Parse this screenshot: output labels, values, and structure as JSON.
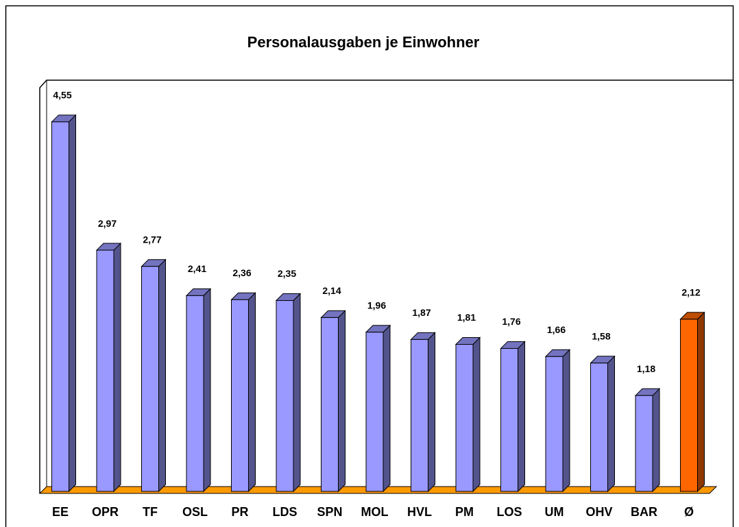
{
  "chart_data": {
    "type": "bar3d",
    "title": "Personalausgaben je Einwohner",
    "categories": [
      "EE",
      "OPR",
      "TF",
      "OSL",
      "PR",
      "LDS",
      "SPN",
      "MOL",
      "HVL",
      "PM",
      "LOS",
      "UM",
      "OHV",
      "BAR",
      "Ø"
    ],
    "values": [
      4.55,
      2.97,
      2.77,
      2.41,
      2.36,
      2.35,
      2.14,
      1.96,
      1.87,
      1.81,
      1.76,
      1.66,
      1.58,
      1.18,
      2.12
    ],
    "value_labels": [
      "4,55",
      "2,97",
      "2,77",
      "2,41",
      "2,36",
      "2,35",
      "2,14",
      "1,96",
      "1,87",
      "1,81",
      "1,76",
      "1,66",
      "1,58",
      "1,18",
      "2,12"
    ],
    "colors": [
      "#9999ff",
      "#9999ff",
      "#9999ff",
      "#9999ff",
      "#9999ff",
      "#9999ff",
      "#9999ff",
      "#9999ff",
      "#9999ff",
      "#9999ff",
      "#9999ff",
      "#9999ff",
      "#9999ff",
      "#9999ff",
      "#ff6600"
    ]
  }
}
